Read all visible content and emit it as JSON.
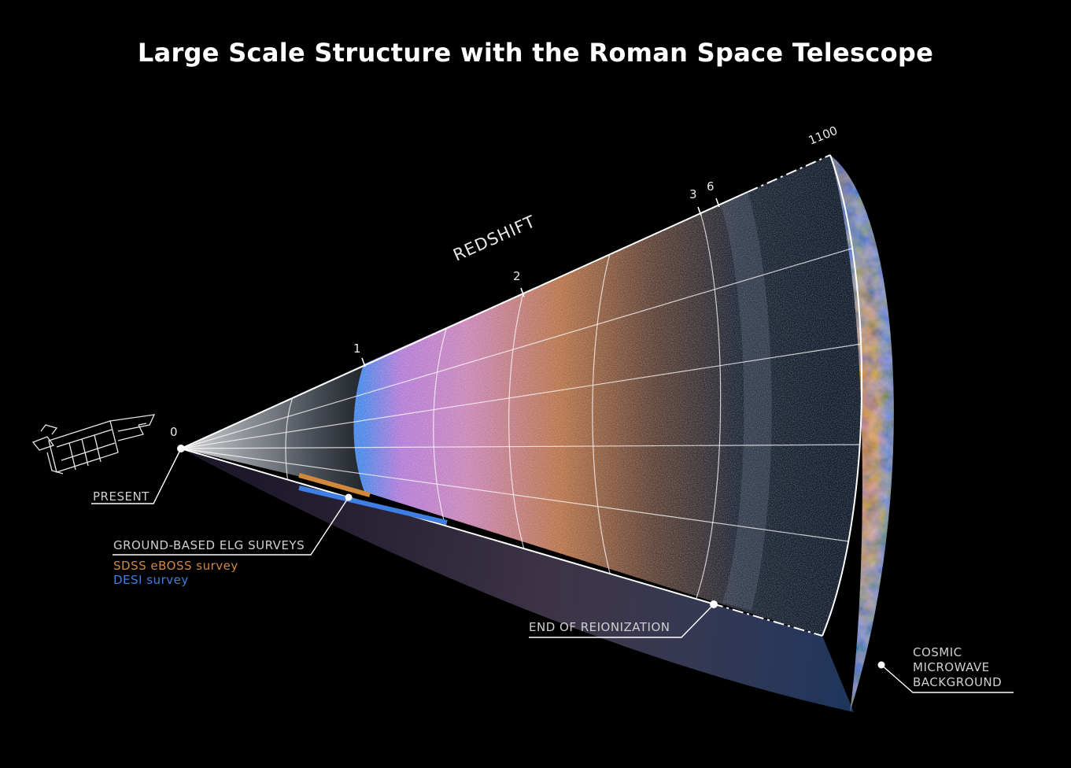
{
  "title": "Large Scale Structure with the Roman Space Telescope",
  "axis_label": "REDSHIFT",
  "redshift_ticks": [
    "0",
    "1",
    "2",
    "3",
    "6",
    "1100"
  ],
  "annotations": {
    "present": "PRESENT",
    "ground_surveys": "GROUND-BASED ELG SURVEYS",
    "sdss": "SDSS eBOSS survey",
    "desi": "DESI survey",
    "reionization": "END OF REIONIZATION",
    "cmb_line1": "COSMIC",
    "cmb_line2": "MICROWAVE",
    "cmb_line3": "BACKGROUND"
  },
  "colors": {
    "background": "#000000",
    "sdss": "#d2883a",
    "desi": "#3f7fe3",
    "cmb_warm": "#c2561f",
    "cmb_cool": "#1f4fa8",
    "galaxy_pink": "#c77fd6",
    "galaxy_orange": "#c57a45"
  },
  "icons": {
    "telescope": "roman-space-telescope-icon"
  }
}
